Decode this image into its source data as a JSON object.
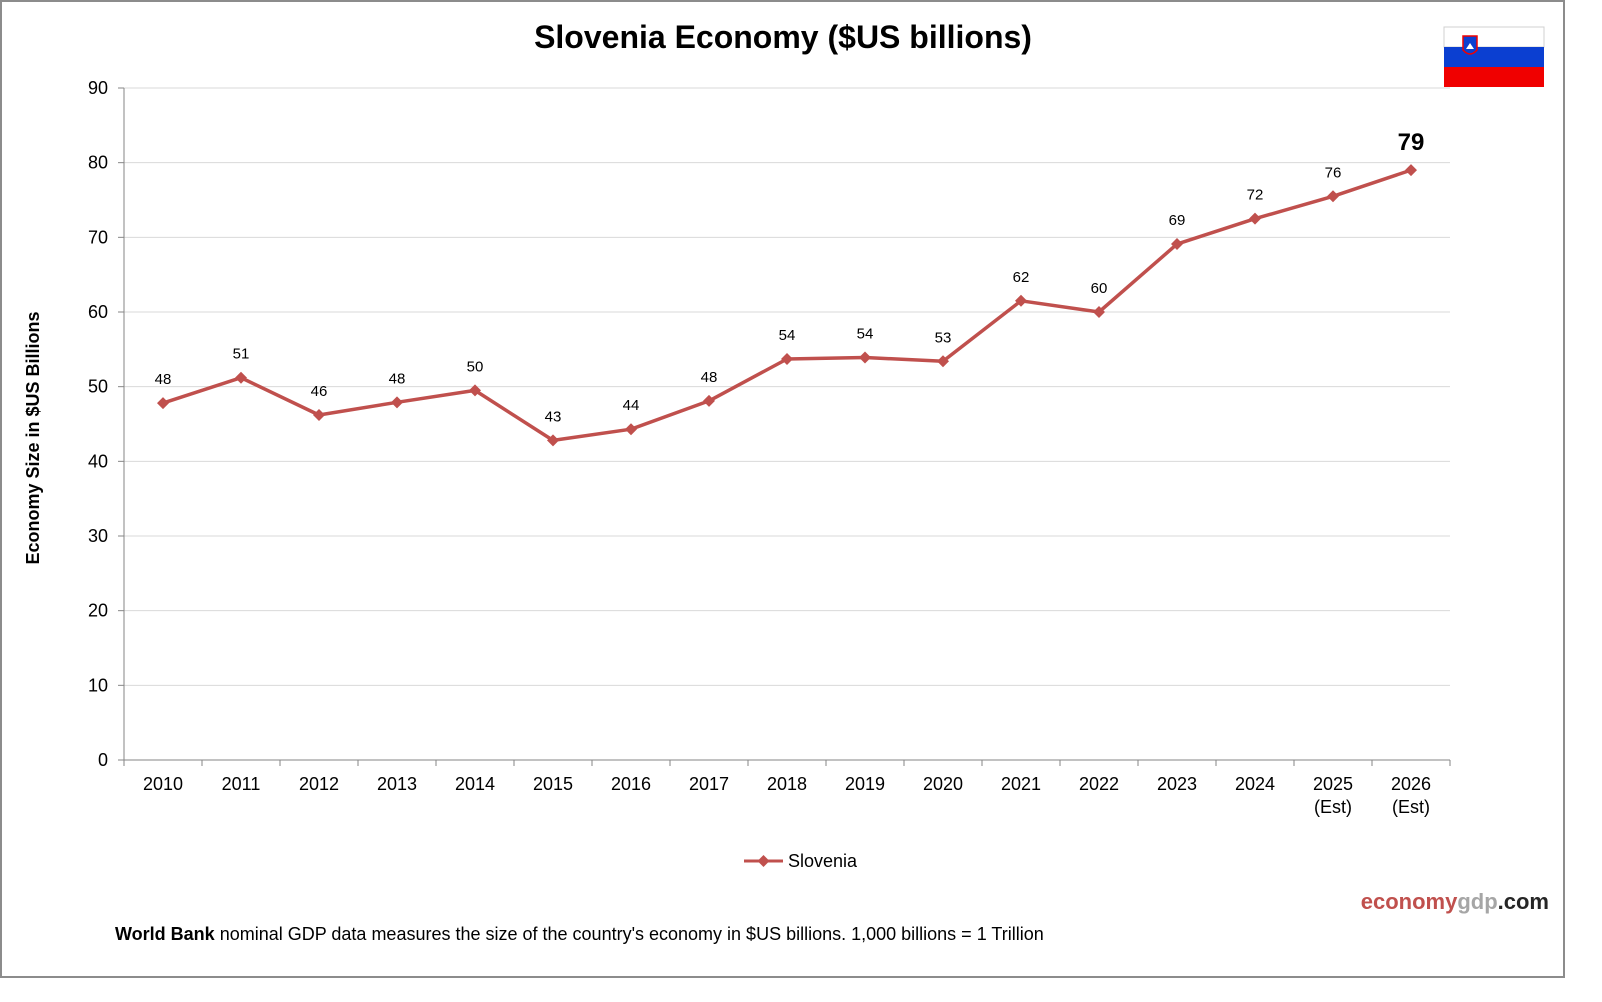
{
  "chart_data": {
    "type": "line",
    "title": "Slovenia Economy ($US billions)",
    "ylabel": "Economy Size in $US Billions",
    "xlabel": "",
    "ylim": [
      0,
      90
    ],
    "yticks": [
      0,
      10,
      20,
      30,
      40,
      50,
      60,
      70,
      80,
      90
    ],
    "grid": true,
    "legend_position": "bottom-center",
    "categories": [
      [
        "2010"
      ],
      [
        "2011"
      ],
      [
        "2012"
      ],
      [
        "2013"
      ],
      [
        "2014"
      ],
      [
        "2015"
      ],
      [
        "2016"
      ],
      [
        "2017"
      ],
      [
        "2018"
      ],
      [
        "2019"
      ],
      [
        "2020"
      ],
      [
        "2021"
      ],
      [
        "2022"
      ],
      [
        "2023"
      ],
      [
        "2024"
      ],
      [
        "2025",
        "(Est)"
      ],
      [
        "2026",
        "(Est)"
      ]
    ],
    "series": [
      {
        "name": "Slovenia",
        "color": "#c0504d",
        "values": [
          47.8,
          51.2,
          46.2,
          47.9,
          49.5,
          42.8,
          44.3,
          48.1,
          53.7,
          53.9,
          53.4,
          61.5,
          60.0,
          69.1,
          72.5,
          75.5,
          79.0
        ],
        "labels": [
          "48",
          "51",
          "46",
          "48",
          "50",
          "43",
          "44",
          "48",
          "54",
          "54",
          "53",
          "62",
          "60",
          "69",
          "72",
          "76",
          "79"
        ]
      }
    ]
  },
  "brand": {
    "part1": "economy",
    "part2": "gdp",
    "part3": ".com",
    "color_red": "#c0504d",
    "color_gray": "#a6a6a6",
    "color_dark": "#262626"
  },
  "footnote": {
    "source": "World Bank",
    "text": " nominal GDP data  measures the size of the country's economy in $US billions.  1,000 billions = 1 Trillion"
  },
  "flag": {
    "name": "slovenia-flag",
    "colors": [
      "#ffffff",
      "#0b3fd1",
      "#f00000"
    ]
  }
}
